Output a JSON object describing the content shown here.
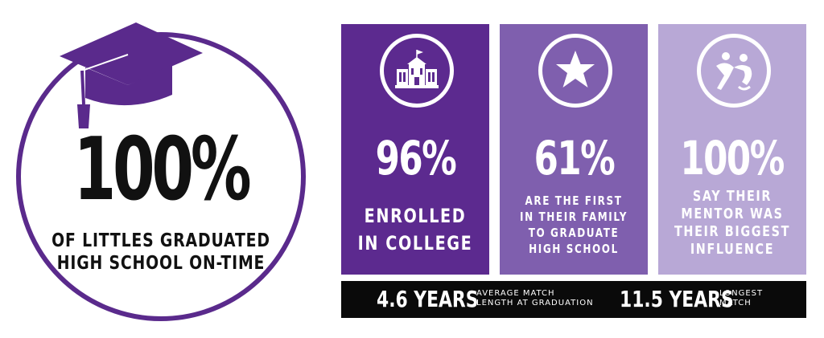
{
  "main_stat": {
    "value": "100%",
    "label_line1": "OF LITTLES GRADUATED",
    "label_line2": "HIGH SCHOOL ON-TIME",
    "icon": "graduation-cap-icon",
    "ring_color": "#5a2a8c"
  },
  "panels": [
    {
      "value": "96%",
      "label_lines": [
        "ENROLLED",
        "IN COLLEGE"
      ],
      "icon": "school-building-icon",
      "color": "#5c2a8f"
    },
    {
      "value": "61%",
      "label_lines": [
        "ARE THE FIRST",
        "IN THEIR FAMILY",
        "TO GRADUATE",
        "HIGH SCHOOL"
      ],
      "icon": "star-icon",
      "color": "#7f5fae"
    },
    {
      "value": "100%",
      "label_lines": [
        "SAY THEIR",
        "MENTOR WAS",
        "THEIR BIGGEST",
        "INFLUENCE"
      ],
      "icon": "mentor-figures-icon",
      "color": "#b8a8d6"
    }
  ],
  "bar": {
    "stat1_value": "4.6 YEARS",
    "stat1_note_line1": "AVERAGE MATCH",
    "stat1_note_line2": "LENGTH AT GRADUATION",
    "stat2_value": "11.5 YEARS",
    "stat2_note_line1": "LONGEST",
    "stat2_note_line2": "MATCH",
    "color": "#0a0a0a"
  }
}
